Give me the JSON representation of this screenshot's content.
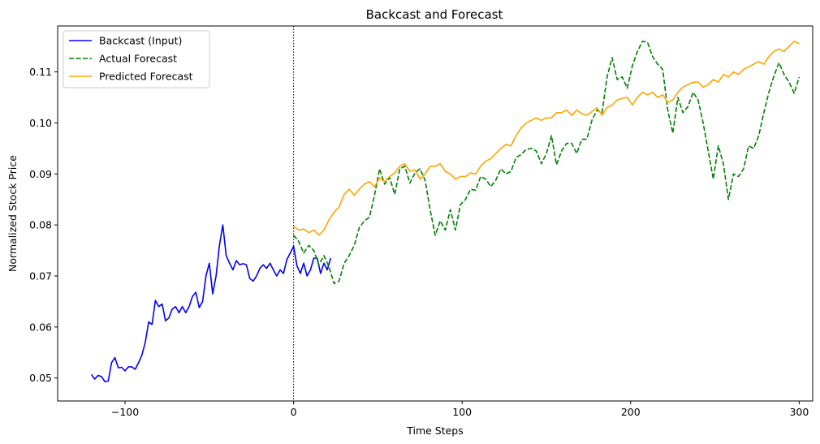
{
  "chart_data": {
    "type": "line",
    "title": "Backcast and Forecast",
    "xlabel": "Time Steps",
    "ylabel": "Normalized Stock Price",
    "xlim": [
      -140,
      308
    ],
    "ylim": [
      0.0455,
      0.119
    ],
    "xticks": [
      -100,
      0,
      100,
      200,
      300
    ],
    "xtick_labels": [
      "−100",
      "0",
      "100",
      "200",
      "300"
    ],
    "yticks": [
      0.05,
      0.06,
      0.07,
      0.08,
      0.09,
      0.1,
      0.11
    ],
    "ytick_labels": [
      "0.05",
      "0.06",
      "0.07",
      "0.08",
      "0.09",
      "0.10",
      "0.11"
    ],
    "grid": false,
    "legend_position": "top-left",
    "vline": {
      "x": 0,
      "style": "dotted",
      "color": "#000000"
    },
    "series": [
      {
        "name": "Backcast (Input)",
        "color": "#0000ff",
        "style": "solid",
        "points": [
          [
            -120,
            0.0507
          ],
          [
            -118,
            0.0498
          ],
          [
            -116,
            0.0505
          ],
          [
            -114,
            0.0503
          ],
          [
            -112,
            0.0493
          ],
          [
            -110,
            0.0494
          ],
          [
            -108,
            0.053
          ],
          [
            -106,
            0.054
          ],
          [
            -104,
            0.052
          ],
          [
            -102,
            0.0521
          ],
          [
            -100,
            0.0514
          ],
          [
            -98,
            0.0522
          ],
          [
            -96,
            0.0522
          ],
          [
            -94,
            0.0517
          ],
          [
            -92,
            0.053
          ],
          [
            -90,
            0.0545
          ],
          [
            -88,
            0.057
          ],
          [
            -86,
            0.061
          ],
          [
            -84,
            0.0605
          ],
          [
            -82,
            0.0652
          ],
          [
            -80,
            0.064
          ],
          [
            -78,
            0.0645
          ],
          [
            -76,
            0.0612
          ],
          [
            -74,
            0.0618
          ],
          [
            -72,
            0.0635
          ],
          [
            -70,
            0.064
          ],
          [
            -68,
            0.0628
          ],
          [
            -66,
            0.064
          ],
          [
            -64,
            0.0628
          ],
          [
            -62,
            0.064
          ],
          [
            -60,
            0.066
          ],
          [
            -58,
            0.0668
          ],
          [
            -56,
            0.0638
          ],
          [
            -54,
            0.065
          ],
          [
            -52,
            0.07
          ],
          [
            -50,
            0.0725
          ],
          [
            -48,
            0.0665
          ],
          [
            -46,
            0.07
          ],
          [
            -44,
            0.076
          ],
          [
            -42,
            0.08
          ],
          [
            -40,
            0.074
          ],
          [
            -38,
            0.0725
          ],
          [
            -36,
            0.0712
          ],
          [
            -34,
            0.073
          ],
          [
            -32,
            0.0722
          ],
          [
            -30,
            0.0724
          ],
          [
            -28,
            0.0722
          ],
          [
            -26,
            0.0695
          ],
          [
            -24,
            0.069
          ],
          [
            -22,
            0.07
          ],
          [
            -20,
            0.0715
          ],
          [
            -18,
            0.0722
          ],
          [
            -16,
            0.0715
          ],
          [
            -14,
            0.0725
          ],
          [
            -12,
            0.0712
          ],
          [
            -10,
            0.07
          ],
          [
            -8,
            0.0712
          ],
          [
            -6,
            0.0705
          ],
          [
            -4,
            0.0732
          ],
          [
            -2,
            0.0745
          ],
          [
            0,
            0.0758
          ],
          [
            2,
            0.072
          ],
          [
            4,
            0.0705
          ],
          [
            6,
            0.0725
          ],
          [
            8,
            0.07
          ],
          [
            10,
            0.0712
          ],
          [
            12,
            0.0735
          ],
          [
            14,
            0.0735
          ],
          [
            16,
            0.0705
          ],
          [
            18,
            0.0725
          ],
          [
            20,
            0.0712
          ],
          [
            22,
            0.0735
          ]
        ]
      },
      {
        "name": "Actual Forecast",
        "color": "#008000",
        "style": "dashed",
        "points": [
          [
            0,
            0.078
          ],
          [
            3,
            0.0768
          ],
          [
            6,
            0.0745
          ],
          [
            9,
            0.076
          ],
          [
            12,
            0.075
          ],
          [
            15,
            0.0722
          ],
          [
            18,
            0.074
          ],
          [
            21,
            0.0718
          ],
          [
            24,
            0.0685
          ],
          [
            27,
            0.069
          ],
          [
            30,
            0.0725
          ],
          [
            33,
            0.074
          ],
          [
            36,
            0.076
          ],
          [
            39,
            0.0795
          ],
          [
            42,
            0.0808
          ],
          [
            45,
            0.0815
          ],
          [
            48,
            0.0858
          ],
          [
            51,
            0.091
          ],
          [
            54,
            0.088
          ],
          [
            57,
            0.0893
          ],
          [
            60,
            0.086
          ],
          [
            63,
            0.091
          ],
          [
            66,
            0.0915
          ],
          [
            69,
            0.0882
          ],
          [
            72,
            0.0902
          ],
          [
            75,
            0.091
          ],
          [
            78,
            0.0888
          ],
          [
            81,
            0.083
          ],
          [
            84,
            0.078
          ],
          [
            87,
            0.0808
          ],
          [
            90,
            0.079
          ],
          [
            93,
            0.083
          ],
          [
            96,
            0.079
          ],
          [
            99,
            0.084
          ],
          [
            102,
            0.085
          ],
          [
            105,
            0.087
          ],
          [
            108,
            0.0868
          ],
          [
            111,
            0.0895
          ],
          [
            114,
            0.089
          ],
          [
            117,
            0.0875
          ],
          [
            120,
            0.0888
          ],
          [
            123,
            0.091
          ],
          [
            126,
            0.09
          ],
          [
            129,
            0.0905
          ],
          [
            132,
            0.0932
          ],
          [
            135,
            0.0938
          ],
          [
            138,
            0.0948
          ],
          [
            141,
            0.095
          ],
          [
            144,
            0.0945
          ],
          [
            147,
            0.092
          ],
          [
            150,
            0.094
          ],
          [
            153,
            0.0975
          ],
          [
            156,
            0.0918
          ],
          [
            159,
            0.0945
          ],
          [
            162,
            0.096
          ],
          [
            165,
            0.096
          ],
          [
            168,
            0.094
          ],
          [
            171,
            0.0968
          ],
          [
            174,
            0.0968
          ],
          [
            177,
            0.1005
          ],
          [
            180,
            0.1025
          ],
          [
            183,
            0.102
          ],
          [
            186,
            0.109
          ],
          [
            189,
            0.1128
          ],
          [
            192,
            0.1085
          ],
          [
            195,
            0.109
          ],
          [
            198,
            0.1068
          ],
          [
            201,
            0.1112
          ],
          [
            204,
            0.114
          ],
          [
            207,
            0.116
          ],
          [
            210,
            0.1158
          ],
          [
            213,
            0.113
          ],
          [
            216,
            0.1115
          ],
          [
            219,
            0.1105
          ],
          [
            222,
            0.1025
          ],
          [
            225,
            0.098
          ],
          [
            228,
            0.105
          ],
          [
            231,
            0.102
          ],
          [
            234,
            0.1032
          ],
          [
            237,
            0.106
          ],
          [
            240,
            0.1045
          ],
          [
            243,
            0.1
          ],
          [
            246,
            0.0945
          ],
          [
            249,
            0.089
          ],
          [
            252,
            0.0955
          ],
          [
            255,
            0.092
          ],
          [
            258,
            0.085
          ],
          [
            261,
            0.09
          ],
          [
            264,
            0.0895
          ],
          [
            267,
            0.091
          ],
          [
            270,
            0.0955
          ],
          [
            273,
            0.095
          ],
          [
            276,
            0.0975
          ],
          [
            279,
            0.102
          ],
          [
            282,
            0.106
          ],
          [
            285,
            0.1092
          ],
          [
            288,
            0.1118
          ],
          [
            291,
            0.1095
          ],
          [
            294,
            0.108
          ],
          [
            297,
            0.1058
          ],
          [
            300,
            0.109
          ]
        ]
      },
      {
        "name": "Predicted Forecast",
        "color": "#ffa500",
        "style": "solid",
        "points": [
          [
            0,
            0.0798
          ],
          [
            3,
            0.079
          ],
          [
            6,
            0.0792
          ],
          [
            9,
            0.0785
          ],
          [
            12,
            0.079
          ],
          [
            15,
            0.078
          ],
          [
            18,
            0.079
          ],
          [
            21,
            0.081
          ],
          [
            24,
            0.0825
          ],
          [
            27,
            0.0835
          ],
          [
            30,
            0.086
          ],
          [
            33,
            0.087
          ],
          [
            36,
            0.0858
          ],
          [
            39,
            0.087
          ],
          [
            42,
            0.088
          ],
          [
            45,
            0.0885
          ],
          [
            48,
            0.0875
          ],
          [
            51,
            0.0892
          ],
          [
            54,
            0.0885
          ],
          [
            57,
            0.0895
          ],
          [
            60,
            0.0902
          ],
          [
            63,
            0.0915
          ],
          [
            66,
            0.092
          ],
          [
            69,
            0.0905
          ],
          [
            72,
            0.0908
          ],
          [
            75,
            0.089
          ],
          [
            78,
            0.09
          ],
          [
            81,
            0.0915
          ],
          [
            84,
            0.0915
          ],
          [
            87,
            0.092
          ],
          [
            90,
            0.0905
          ],
          [
            93,
            0.09
          ],
          [
            96,
            0.089
          ],
          [
            99,
            0.0895
          ],
          [
            102,
            0.0895
          ],
          [
            105,
            0.0902
          ],
          [
            108,
            0.09
          ],
          [
            111,
            0.0915
          ],
          [
            114,
            0.0925
          ],
          [
            117,
            0.093
          ],
          [
            120,
            0.094
          ],
          [
            123,
            0.095
          ],
          [
            126,
            0.0958
          ],
          [
            129,
            0.0955
          ],
          [
            132,
            0.0975
          ],
          [
            135,
            0.099
          ],
          [
            138,
            0.1
          ],
          [
            141,
            0.1005
          ],
          [
            144,
            0.101
          ],
          [
            147,
            0.1005
          ],
          [
            150,
            0.101
          ],
          [
            153,
            0.101
          ],
          [
            156,
            0.102
          ],
          [
            159,
            0.102
          ],
          [
            162,
            0.1025
          ],
          [
            165,
            0.1015
          ],
          [
            168,
            0.1025
          ],
          [
            171,
            0.1018
          ],
          [
            174,
            0.1015
          ],
          [
            177,
            0.1022
          ],
          [
            180,
            0.103
          ],
          [
            183,
            0.1015
          ],
          [
            186,
            0.103
          ],
          [
            189,
            0.1035
          ],
          [
            192,
            0.1045
          ],
          [
            195,
            0.1048
          ],
          [
            198,
            0.105
          ],
          [
            201,
            0.1035
          ],
          [
            204,
            0.105
          ],
          [
            207,
            0.106
          ],
          [
            210,
            0.1055
          ],
          [
            213,
            0.106
          ],
          [
            216,
            0.105
          ],
          [
            219,
            0.1055
          ],
          [
            222,
            0.104
          ],
          [
            225,
            0.1045
          ],
          [
            228,
            0.106
          ],
          [
            231,
            0.107
          ],
          [
            234,
            0.1075
          ],
          [
            237,
            0.108
          ],
          [
            240,
            0.108
          ],
          [
            243,
            0.107
          ],
          [
            246,
            0.1075
          ],
          [
            249,
            0.1085
          ],
          [
            252,
            0.108
          ],
          [
            255,
            0.1095
          ],
          [
            258,
            0.109
          ],
          [
            261,
            0.11
          ],
          [
            264,
            0.1095
          ],
          [
            267,
            0.1105
          ],
          [
            270,
            0.111
          ],
          [
            273,
            0.1115
          ],
          [
            276,
            0.112
          ],
          [
            279,
            0.1115
          ],
          [
            282,
            0.113
          ],
          [
            285,
            0.114
          ],
          [
            288,
            0.1145
          ],
          [
            291,
            0.114
          ],
          [
            294,
            0.115
          ],
          [
            297,
            0.116
          ],
          [
            300,
            0.1155
          ]
        ]
      }
    ]
  }
}
